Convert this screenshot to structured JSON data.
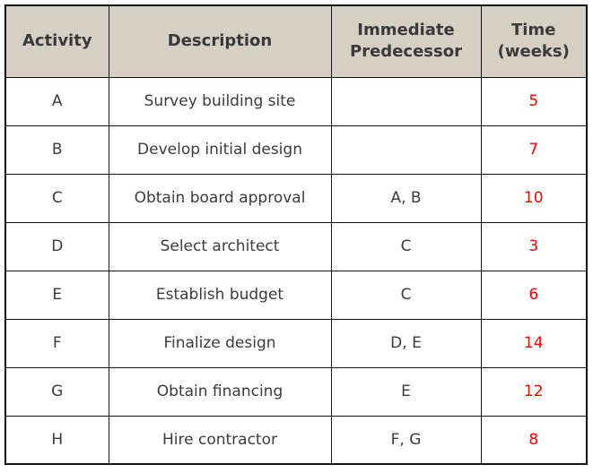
{
  "table": {
    "headers": {
      "activity": "Activity",
      "description": "Description",
      "predecessor": "Immediate\nPredecessor",
      "time": "Time\n(weeks)"
    },
    "rows": [
      {
        "activity": "A",
        "description": "Survey building site",
        "predecessor": "",
        "time": "5"
      },
      {
        "activity": "B",
        "description": "Develop initial design",
        "predecessor": "",
        "time": "7"
      },
      {
        "activity": "C",
        "description": "Obtain board approval",
        "predecessor": "A, B",
        "time": "10"
      },
      {
        "activity": "D",
        "description": "Select architect",
        "predecessor": "C",
        "time": "3"
      },
      {
        "activity": "E",
        "description": "Establish budget",
        "predecessor": "C",
        "time": "6"
      },
      {
        "activity": "F",
        "description": "Finalize design",
        "predecessor": "D, E",
        "time": "14"
      },
      {
        "activity": "G",
        "description": "Obtain financing",
        "predecessor": "E",
        "time": "12"
      },
      {
        "activity": "H",
        "description": "Hire contractor",
        "predecessor": "F, G",
        "time": "8"
      }
    ]
  },
  "colors": {
    "header_bg": "#d5d0c3",
    "header_text": "#3a3a3a",
    "body_text": "#3b3b3b",
    "time_text": "#fe0000",
    "border": "#111111",
    "page_bg": "#ffffff"
  }
}
